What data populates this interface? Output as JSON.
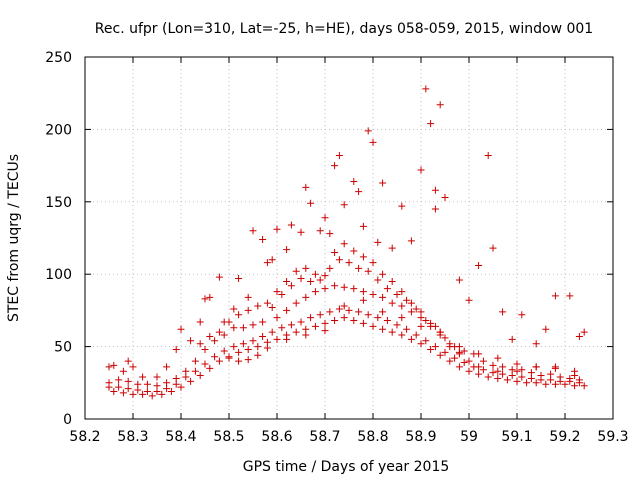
{
  "chart_data": {
    "type": "scatter",
    "title": "Rec. ufpr (Lon=310, Lat=-25, h=HE), days 058-059, 2015, window 001",
    "xlabel": "GPS time / Days of year 2015",
    "ylabel": "STEC from uqrg / TECUs",
    "xlim": [
      58.2,
      59.3
    ],
    "ylim": [
      0,
      250
    ],
    "x_ticks": [
      "58.2",
      "58.3",
      "58.4",
      "58.5",
      "58.6",
      "58.7",
      "58.8",
      "58.9",
      "59",
      "59.1",
      "59.2",
      "59.3"
    ],
    "y_ticks": [
      "0",
      "50",
      "100",
      "150",
      "200",
      "250"
    ],
    "grid": true,
    "legend": "none",
    "marker": "+",
    "color": "#cc0000",
    "points": [
      [
        58.25,
        36
      ],
      [
        58.26,
        37
      ],
      [
        58.28,
        33
      ],
      [
        58.29,
        40
      ],
      [
        58.3,
        36
      ],
      [
        58.32,
        29
      ],
      [
        58.35,
        29
      ],
      [
        58.37,
        36
      ],
      [
        58.39,
        48
      ],
      [
        58.4,
        62
      ],
      [
        58.42,
        54
      ],
      [
        58.44,
        67
      ],
      [
        58.45,
        83
      ],
      [
        58.46,
        84
      ],
      [
        58.48,
        98
      ],
      [
        58.49,
        67
      ],
      [
        58.51,
        76
      ],
      [
        58.52,
        97
      ],
      [
        58.54,
        84
      ],
      [
        58.55,
        130
      ],
      [
        58.57,
        124
      ],
      [
        58.58,
        108
      ],
      [
        58.59,
        110
      ],
      [
        58.6,
        131
      ],
      [
        58.62,
        117
      ],
      [
        58.63,
        134
      ],
      [
        58.65,
        129
      ],
      [
        58.66,
        160
      ],
      [
        58.67,
        149
      ],
      [
        58.69,
        130
      ],
      [
        58.7,
        139
      ],
      [
        58.71,
        128
      ],
      [
        58.72,
        175
      ],
      [
        58.73,
        182
      ],
      [
        58.74,
        148
      ],
      [
        58.76,
        164
      ],
      [
        58.77,
        157
      ],
      [
        58.78,
        133
      ],
      [
        58.79,
        199
      ],
      [
        58.8,
        191
      ],
      [
        58.81,
        122
      ],
      [
        58.82,
        163
      ],
      [
        58.84,
        118
      ],
      [
        58.86,
        147
      ],
      [
        58.88,
        123
      ],
      [
        58.9,
        172
      ],
      [
        58.91,
        228
      ],
      [
        58.92,
        204
      ],
      [
        58.93,
        158
      ],
      [
        58.93,
        145
      ],
      [
        58.94,
        217
      ],
      [
        58.95,
        153
      ],
      [
        58.98,
        96
      ],
      [
        59.0,
        82
      ],
      [
        59.02,
        106
      ],
      [
        59.04,
        182
      ],
      [
        59.05,
        118
      ],
      [
        59.07,
        74
      ],
      [
        59.09,
        55
      ],
      [
        59.11,
        72
      ],
      [
        59.14,
        52
      ],
      [
        59.16,
        62
      ],
      [
        59.18,
        85
      ],
      [
        59.21,
        85
      ],
      [
        59.23,
        57
      ],
      [
        59.24,
        60
      ],
      [
        58.25,
        25
      ],
      [
        58.27,
        27
      ],
      [
        58.29,
        26
      ],
      [
        58.31,
        24
      ],
      [
        58.33,
        24
      ],
      [
        58.35,
        23
      ],
      [
        58.37,
        25
      ],
      [
        58.39,
        28
      ],
      [
        58.41,
        33
      ],
      [
        58.43,
        40
      ],
      [
        58.45,
        48
      ],
      [
        58.47,
        54
      ],
      [
        58.49,
        58
      ],
      [
        58.51,
        63
      ],
      [
        58.53,
        63
      ],
      [
        58.55,
        65
      ],
      [
        58.57,
        67
      ],
      [
        58.59,
        77
      ],
      [
        58.61,
        86
      ],
      [
        58.63,
        92
      ],
      [
        58.65,
        97
      ],
      [
        58.67,
        95
      ],
      [
        58.69,
        96
      ],
      [
        58.71,
        104
      ],
      [
        58.73,
        110
      ],
      [
        58.75,
        108
      ],
      [
        58.77,
        104
      ],
      [
        58.79,
        102
      ],
      [
        58.81,
        96
      ],
      [
        58.83,
        90
      ],
      [
        58.85,
        86
      ],
      [
        58.87,
        82
      ],
      [
        58.89,
        76
      ],
      [
        58.91,
        68
      ],
      [
        58.93,
        64
      ],
      [
        58.95,
        56
      ],
      [
        58.97,
        50
      ],
      [
        58.99,
        47
      ],
      [
        59.01,
        45
      ],
      [
        59.03,
        40
      ],
      [
        59.05,
        37
      ],
      [
        59.07,
        36
      ],
      [
        59.09,
        34
      ],
      [
        59.11,
        34
      ],
      [
        59.13,
        32
      ],
      [
        59.15,
        30
      ],
      [
        59.17,
        31
      ],
      [
        59.19,
        29
      ],
      [
        59.21,
        28
      ],
      [
        59.23,
        27
      ],
      [
        58.25,
        22
      ],
      [
        58.27,
        22
      ],
      [
        58.29,
        21
      ],
      [
        58.31,
        20
      ],
      [
        58.33,
        19
      ],
      [
        58.35,
        19
      ],
      [
        58.37,
        21
      ],
      [
        58.39,
        24
      ],
      [
        58.41,
        29
      ],
      [
        58.43,
        33
      ],
      [
        58.45,
        38
      ],
      [
        58.47,
        43
      ],
      [
        58.49,
        47
      ],
      [
        58.51,
        50
      ],
      [
        58.53,
        52
      ],
      [
        58.55,
        54
      ],
      [
        58.57,
        57
      ],
      [
        58.59,
        60
      ],
      [
        58.61,
        63
      ],
      [
        58.63,
        65
      ],
      [
        58.65,
        67
      ],
      [
        58.67,
        70
      ],
      [
        58.69,
        72
      ],
      [
        58.71,
        74
      ],
      [
        58.73,
        76
      ],
      [
        58.75,
        75
      ],
      [
        58.77,
        74
      ],
      [
        58.79,
        72
      ],
      [
        58.81,
        70
      ],
      [
        58.83,
        68
      ],
      [
        58.85,
        65
      ],
      [
        58.87,
        62
      ],
      [
        58.89,
        58
      ],
      [
        58.91,
        54
      ],
      [
        58.93,
        50
      ],
      [
        58.95,
        46
      ],
      [
        58.97,
        42
      ],
      [
        58.99,
        39
      ],
      [
        59.01,
        36
      ],
      [
        59.03,
        34
      ],
      [
        59.05,
        32
      ],
      [
        59.07,
        31
      ],
      [
        59.09,
        30
      ],
      [
        59.11,
        29
      ],
      [
        59.13,
        28
      ],
      [
        59.15,
        27
      ],
      [
        59.17,
        27
      ],
      [
        59.19,
        26
      ],
      [
        59.21,
        26
      ],
      [
        59.23,
        25
      ],
      [
        58.26,
        19
      ],
      [
        58.28,
        18
      ],
      [
        58.3,
        17
      ],
      [
        58.32,
        17
      ],
      [
        58.34,
        16
      ],
      [
        58.36,
        17
      ],
      [
        58.38,
        19
      ],
      [
        58.4,
        22
      ],
      [
        58.42,
        26
      ],
      [
        58.44,
        30
      ],
      [
        58.46,
        35
      ],
      [
        58.48,
        40
      ],
      [
        58.5,
        43
      ],
      [
        58.52,
        46
      ],
      [
        58.54,
        48
      ],
      [
        58.56,
        50
      ],
      [
        58.58,
        53
      ],
      [
        58.6,
        55
      ],
      [
        58.62,
        58
      ],
      [
        58.64,
        60
      ],
      [
        58.66,
        62
      ],
      [
        58.68,
        64
      ],
      [
        58.7,
        66
      ],
      [
        58.72,
        68
      ],
      [
        58.74,
        70
      ],
      [
        58.76,
        68
      ],
      [
        58.78,
        66
      ],
      [
        58.8,
        64
      ],
      [
        58.82,
        62
      ],
      [
        58.84,
        60
      ],
      [
        58.86,
        58
      ],
      [
        58.88,
        55
      ],
      [
        58.9,
        52
      ],
      [
        58.92,
        48
      ],
      [
        58.94,
        44
      ],
      [
        58.96,
        40
      ],
      [
        58.98,
        36
      ],
      [
        59.0,
        33
      ],
      [
        59.02,
        31
      ],
      [
        59.04,
        29
      ],
      [
        59.06,
        28
      ],
      [
        59.08,
        27
      ],
      [
        59.1,
        26
      ],
      [
        59.12,
        25
      ],
      [
        59.14,
        25
      ],
      [
        59.16,
        24
      ],
      [
        59.18,
        24
      ],
      [
        59.2,
        24
      ],
      [
        59.22,
        23
      ],
      [
        59.24,
        23
      ],
      [
        58.44,
        52
      ],
      [
        58.46,
        57
      ],
      [
        58.48,
        60
      ],
      [
        58.5,
        67
      ],
      [
        58.52,
        72
      ],
      [
        58.54,
        75
      ],
      [
        58.56,
        78
      ],
      [
        58.58,
        80
      ],
      [
        58.6,
        88
      ],
      [
        58.62,
        95
      ],
      [
        58.64,
        102
      ],
      [
        58.66,
        104
      ],
      [
        58.68,
        100
      ],
      [
        58.7,
        99
      ],
      [
        58.72,
        115
      ],
      [
        58.74,
        121
      ],
      [
        58.76,
        116
      ],
      [
        58.78,
        112
      ],
      [
        58.8,
        108
      ],
      [
        58.82,
        100
      ],
      [
        58.84,
        95
      ],
      [
        58.86,
        88
      ],
      [
        58.88,
        80
      ],
      [
        58.9,
        74
      ],
      [
        58.92,
        66
      ],
      [
        58.94,
        60
      ],
      [
        58.96,
        50
      ],
      [
        58.98,
        45
      ],
      [
        59.0,
        40
      ],
      [
        59.02,
        36
      ],
      [
        59.06,
        33
      ],
      [
        59.1,
        33
      ],
      [
        59.14,
        36
      ],
      [
        59.18,
        35
      ],
      [
        59.22,
        33
      ],
      [
        58.6,
        70
      ],
      [
        58.62,
        75
      ],
      [
        58.64,
        80
      ],
      [
        58.66,
        84
      ],
      [
        58.68,
        88
      ],
      [
        58.7,
        90
      ],
      [
        58.72,
        92
      ],
      [
        58.74,
        91
      ],
      [
        58.76,
        90
      ],
      [
        58.78,
        88
      ],
      [
        58.8,
        86
      ],
      [
        58.82,
        84
      ],
      [
        58.84,
        80
      ],
      [
        58.86,
        78
      ],
      [
        58.88,
        74
      ],
      [
        58.9,
        70
      ],
      [
        58.92,
        64
      ],
      [
        58.94,
        58
      ],
      [
        58.96,
        52
      ],
      [
        58.98,
        46
      ],
      [
        58.5,
        42
      ],
      [
        58.52,
        40
      ],
      [
        58.54,
        41
      ],
      [
        58.56,
        44
      ],
      [
        58.58,
        49
      ],
      [
        58.62,
        55
      ],
      [
        58.66,
        58
      ],
      [
        58.7,
        61
      ],
      [
        58.74,
        78
      ],
      [
        58.78,
        82
      ],
      [
        58.82,
        74
      ],
      [
        58.86,
        70
      ],
      [
        58.9,
        64
      ],
      [
        58.94,
        60
      ],
      [
        58.98,
        50
      ],
      [
        59.02,
        45
      ],
      [
        59.06,
        42
      ],
      [
        59.1,
        38
      ],
      [
        59.14,
        36
      ],
      [
        59.18,
        36
      ],
      [
        59.22,
        30
      ]
    ]
  }
}
